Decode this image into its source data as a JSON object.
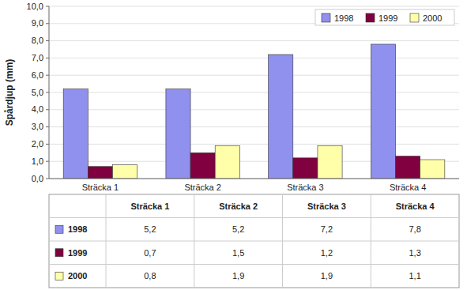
{
  "chart_data": {
    "type": "bar",
    "categories": [
      "Sträcka 1",
      "Sträcka 2",
      "Sträcka 3",
      "Sträcka 4"
    ],
    "series": [
      {
        "name": "1998",
        "color": "#9090ee",
        "values": [
          5.2,
          5.2,
          7.2,
          7.8
        ],
        "value_labels": [
          "5,2",
          "5,2",
          "7,2",
          "7,8"
        ]
      },
      {
        "name": "1999",
        "color": "#800040",
        "values": [
          0.7,
          1.5,
          1.2,
          1.3
        ],
        "value_labels": [
          "0,7",
          "1,5",
          "1,2",
          "1,3"
        ]
      },
      {
        "name": "2000",
        "color": "#ffffaa",
        "values": [
          0.8,
          1.9,
          1.9,
          1.1
        ],
        "value_labels": [
          "0,8",
          "1,9",
          "1,9",
          "1,1"
        ]
      }
    ],
    "ylabel": "Spårdjup (mm)",
    "ylim": [
      0.0,
      10.0
    ],
    "yticks": [
      {
        "value": 0.0,
        "label": "0,0"
      },
      {
        "value": 1.0,
        "label": "1,0"
      },
      {
        "value": 2.0,
        "label": "2,0"
      },
      {
        "value": 3.0,
        "label": "3,0"
      },
      {
        "value": 4.0,
        "label": "4,0"
      },
      {
        "value": 5.0,
        "label": "5,0"
      },
      {
        "value": 6.0,
        "label": "6,0"
      },
      {
        "value": 7.0,
        "label": "7,0"
      },
      {
        "value": 8.0,
        "label": "8,0"
      },
      {
        "value": 9.0,
        "label": "9,0"
      },
      {
        "value": 10.0,
        "label": "10,0"
      }
    ],
    "grid": true,
    "legend": "upper right"
  }
}
